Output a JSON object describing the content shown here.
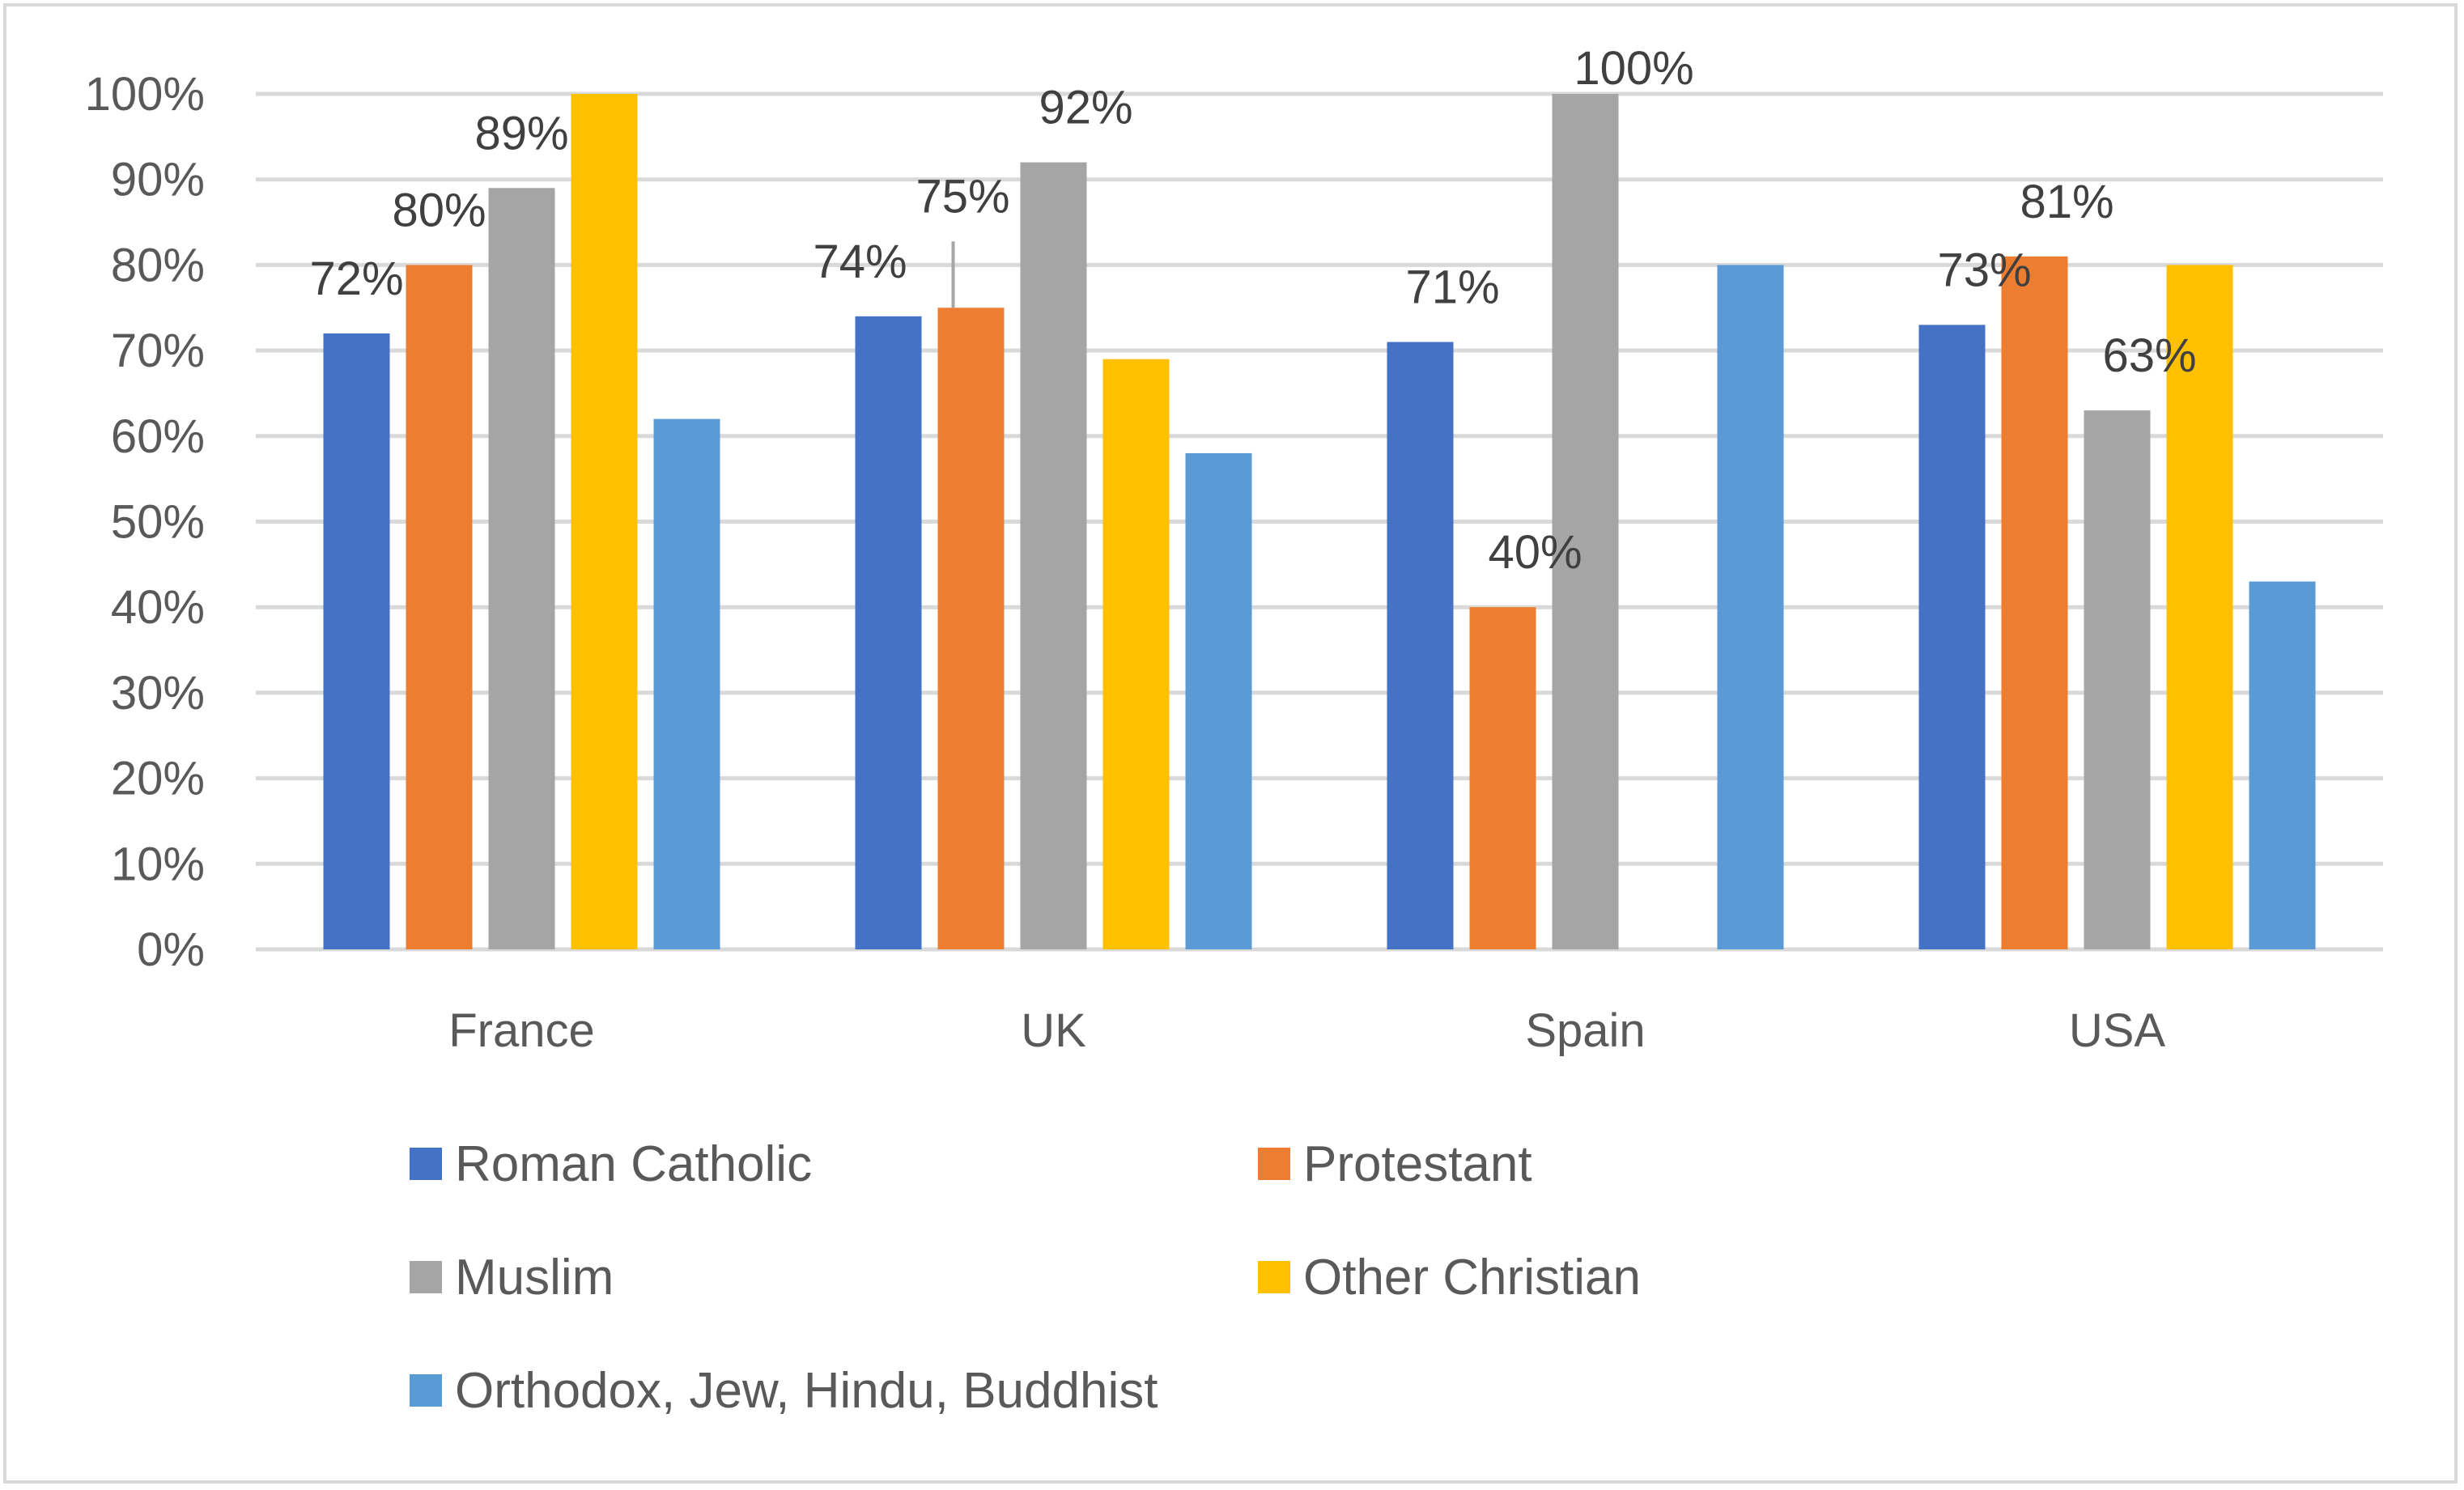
{
  "chart_data": {
    "type": "bar",
    "categories": [
      "France",
      "UK",
      "Spain",
      "USA"
    ],
    "series": [
      {
        "name": "Roman Catholic",
        "color": "#4472C4",
        "values": [
          72,
          74,
          71,
          73
        ]
      },
      {
        "name": "Protestant",
        "color": "#ED7D31",
        "values": [
          80,
          75,
          40,
          81
        ]
      },
      {
        "name": "Muslim",
        "color": "#A5A5A5",
        "values": [
          89,
          92,
          100,
          63
        ]
      },
      {
        "name": "Other Christian",
        "color": "#FFC000",
        "values": [
          100,
          69,
          0,
          80
        ]
      },
      {
        "name": "Orthodox, Jew, Hindu, Buddhist",
        "color": "#5B9BD5",
        "values": [
          62,
          58,
          80,
          43
        ]
      }
    ],
    "data_labels": [
      {
        "category": "France",
        "series": "Roman Catholic",
        "text": "72%"
      },
      {
        "category": "France",
        "series": "Protestant",
        "text": "80%"
      },
      {
        "category": "France",
        "series": "Muslim",
        "text": "89%"
      },
      {
        "category": "UK",
        "series": "Roman Catholic",
        "text": "74%"
      },
      {
        "category": "UK",
        "series": "Protestant",
        "text": "75%"
      },
      {
        "category": "UK",
        "series": "Muslim",
        "text": "92%"
      },
      {
        "category": "Spain",
        "series": "Roman Catholic",
        "text": "71%"
      },
      {
        "category": "Spain",
        "series": "Protestant",
        "text": "40%"
      },
      {
        "category": "Spain",
        "series": "Muslim",
        "text": "100%"
      },
      {
        "category": "USA",
        "series": "Roman Catholic",
        "text": "73%"
      },
      {
        "category": "USA",
        "series": "Protestant",
        "text": "81%"
      },
      {
        "category": "USA",
        "series": "Muslim",
        "text": "63%"
      }
    ],
    "yticks": [
      "0%",
      "10%",
      "20%",
      "30%",
      "40%",
      "50%",
      "60%",
      "70%",
      "80%",
      "90%",
      "100%"
    ],
    "ylim": [
      0,
      100
    ],
    "title": "",
    "xlabel": "",
    "ylabel": "",
    "grid": true,
    "legend_position": "bottom"
  }
}
